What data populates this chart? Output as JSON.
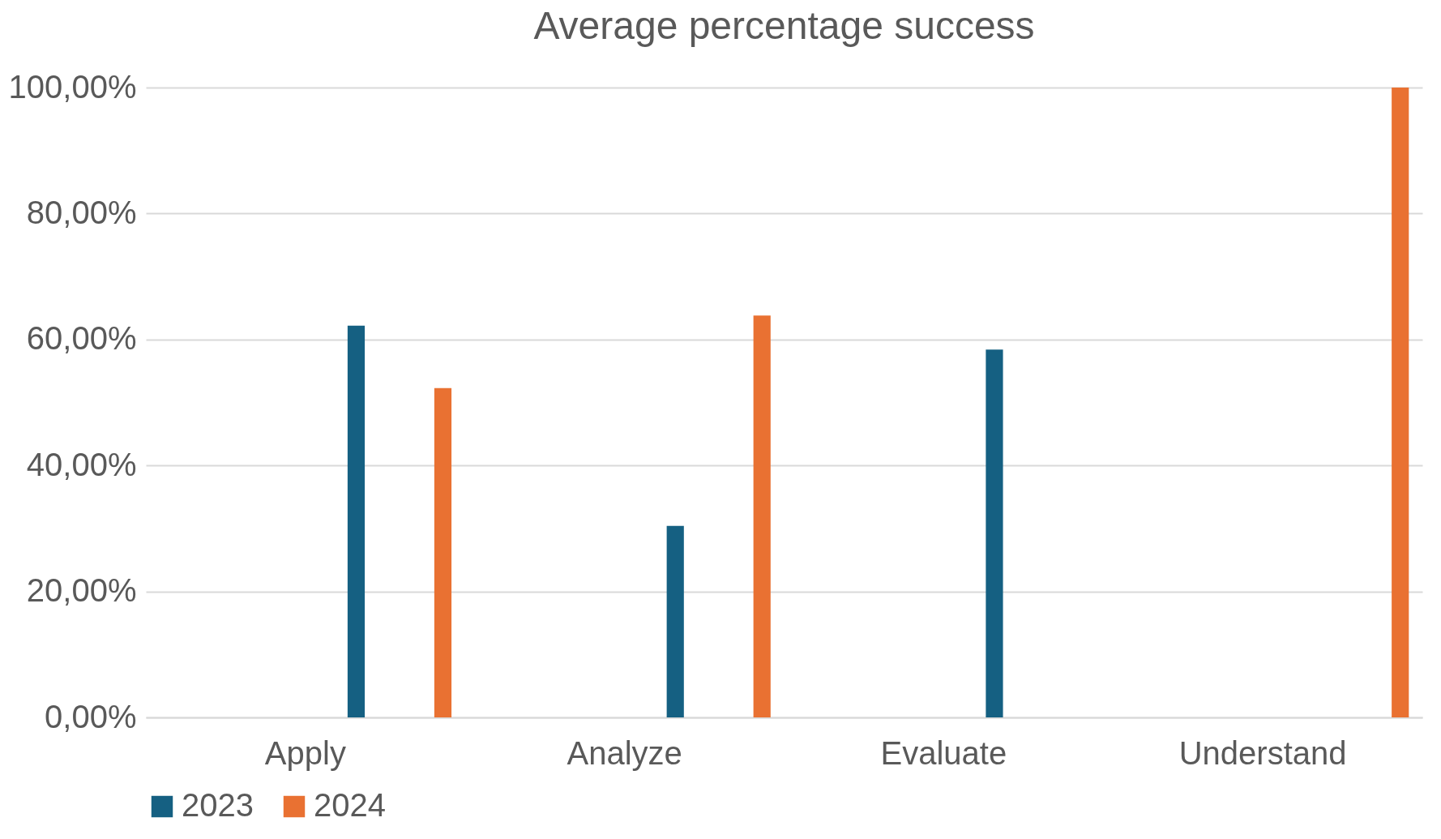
{
  "chart_data": {
    "type": "bar",
    "title": "Average percentage success",
    "categories": [
      "Apply",
      "Analyze",
      "Evaluate",
      "Understand"
    ],
    "series": [
      {
        "name": "2023",
        "color": "#156082",
        "values": [
          62.2,
          30.4,
          58.4,
          null
        ]
      },
      {
        "name": "2024",
        "color": "#e97132",
        "values": [
          52.3,
          63.8,
          null,
          100
        ]
      }
    ],
    "ylim": [
      0,
      100
    ],
    "yticks": [
      {
        "value": 0,
        "label": "0,00%"
      },
      {
        "value": 20,
        "label": "20,00%"
      },
      {
        "value": 40,
        "label": "40,00%"
      },
      {
        "value": 60,
        "label": "60,00%"
      },
      {
        "value": 80,
        "label": "80,00%"
      },
      {
        "value": 100,
        "label": "100,00%"
      }
    ],
    "grid": "y",
    "legend": "bottom"
  }
}
